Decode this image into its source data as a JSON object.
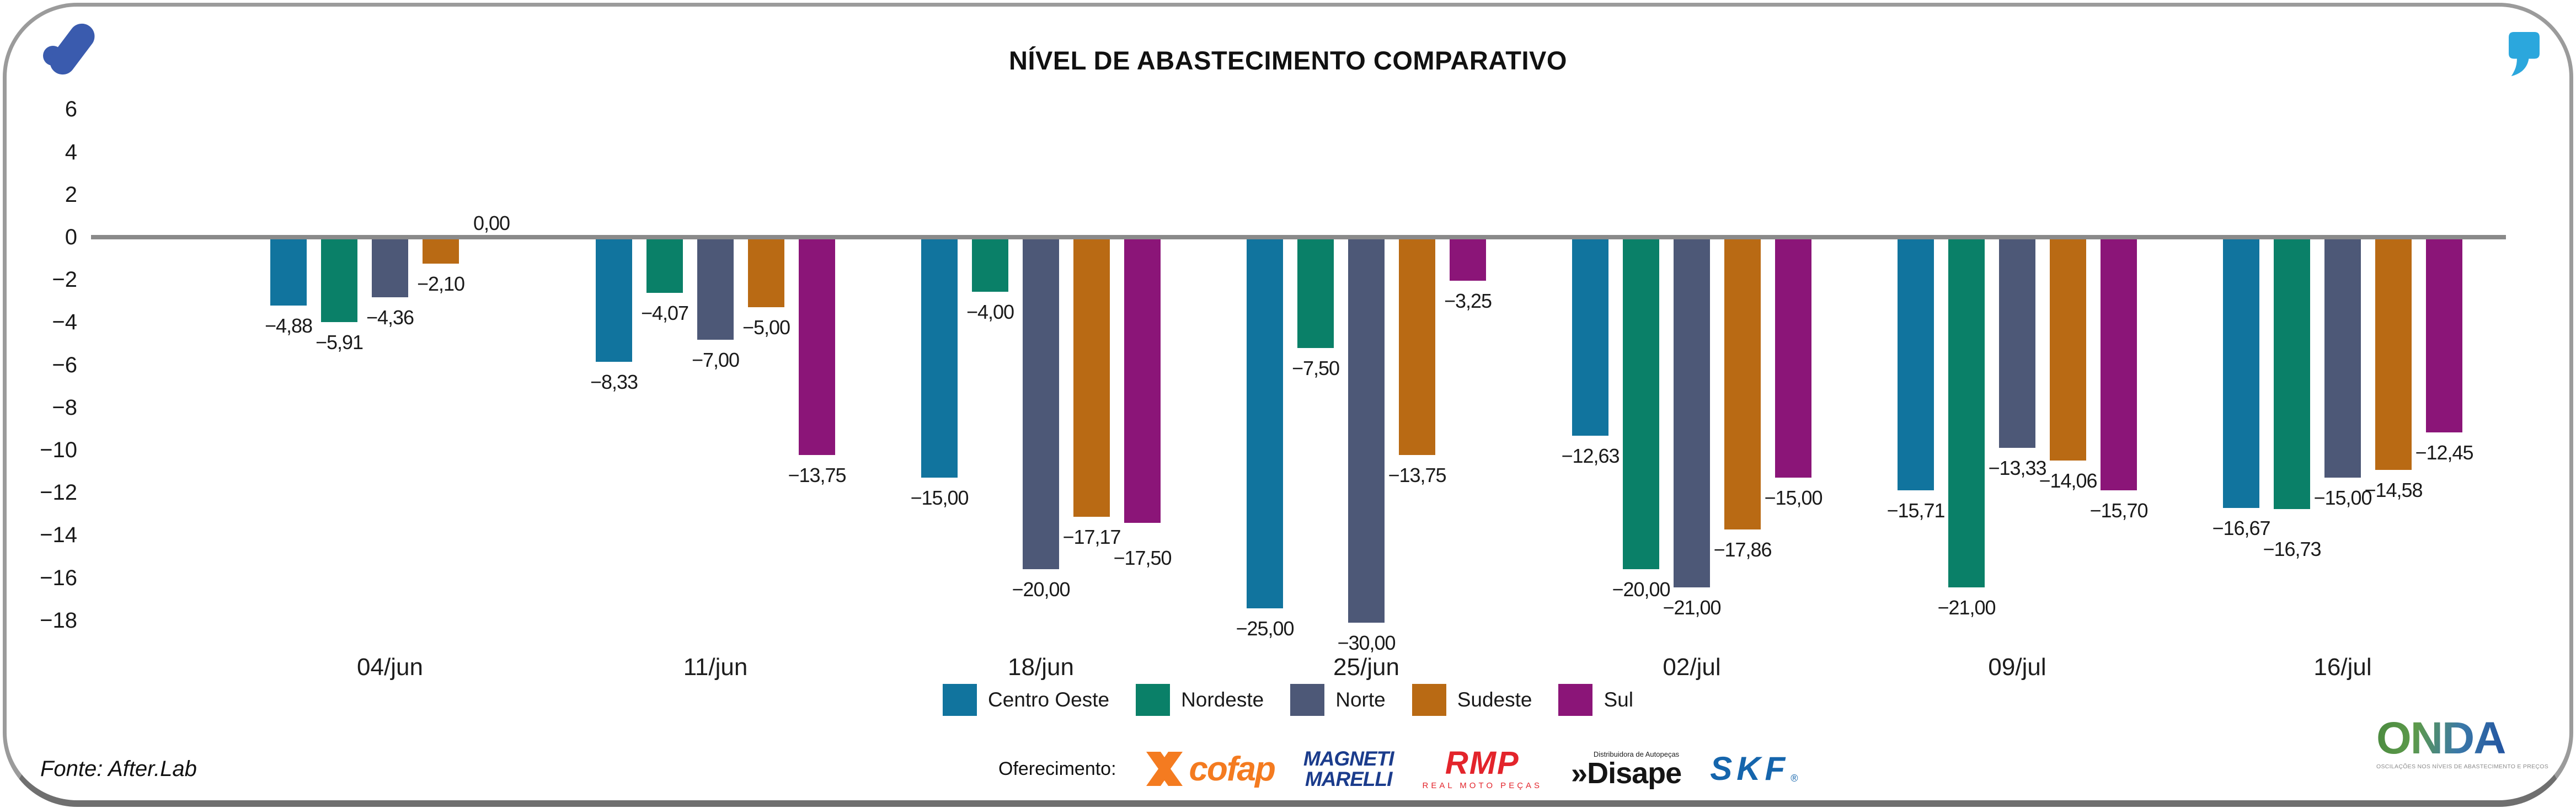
{
  "header": {
    "title": "NÍVEL DE ABASTECIMENTO COMPARATIVO"
  },
  "branding": {
    "afterlab_logo_color": "#3a5bae",
    "quote_icon_color": "#2ba7dd"
  },
  "chart_data": {
    "type": "bar",
    "title": "NÍVEL DE ABASTECIMENTO COMPARATIVO",
    "categories": [
      "04/jun",
      "11/jun",
      "18/jun",
      "25/jun",
      "02/jul",
      "09/jul",
      "16/jul"
    ],
    "series": [
      {
        "name": "Centro Oeste",
        "color": "#11749E",
        "values": [
          -4.88,
          -8.33,
          -15.0,
          -25.0,
          -12.63,
          -15.71,
          -16.67
        ]
      },
      {
        "name": "Nordeste",
        "color": "#0A8068",
        "values": [
          -5.91,
          -4.07,
          -4.0,
          -7.5,
          -20.0,
          -21.0,
          -16.73
        ]
      },
      {
        "name": "Norte",
        "color": "#4D5877",
        "values": [
          -4.36,
          -7.0,
          -20.0,
          -30.0,
          -21.0,
          -13.33,
          -15.0
        ]
      },
      {
        "name": "Sudeste",
        "color": "#B96A14",
        "values": [
          -2.1,
          -5.0,
          -17.17,
          -13.75,
          -17.86,
          -14.06,
          -14.58
        ]
      },
      {
        "name": "Sul",
        "color": "#8B1578",
        "values": [
          0.0,
          -13.75,
          -17.5,
          -3.25,
          -15.0,
          -15.7,
          -12.45
        ]
      }
    ],
    "yticks": [
      6,
      4,
      2,
      0,
      -2,
      -4,
      -6,
      -8,
      -10,
      -12,
      -14,
      -16,
      -18
    ],
    "ylim": [
      6,
      -18
    ],
    "baseline": 0,
    "grid": false,
    "legend_position": "bottom",
    "value_labels": "below bar ends, comma decimal, two decimals",
    "zero_line_color": "#8a8a8a"
  },
  "footer": {
    "source": "Fonte: After.Lab",
    "sponsor_label": "Oferecimento:",
    "sponsors": {
      "cofap": {
        "wordmark": "cofap"
      },
      "magneti": {
        "line1": "MAGNETI",
        "line2": "MARELLI"
      },
      "rmp": {
        "wordmark": "RMP",
        "tagline": "REAL MOTO PEÇAS"
      },
      "disape": {
        "tagline": "Distribuidora de Autopeças",
        "chevrons": "»",
        "wordmark": "Disape"
      },
      "skf": {
        "wordmark": "SKF",
        "reg": "®"
      }
    },
    "onda": {
      "wordmark": "ONDA",
      "tagline": "OSCILAÇÕES NOS NÍVEIS DE ABASTECIMENTO E PREÇOS"
    }
  }
}
